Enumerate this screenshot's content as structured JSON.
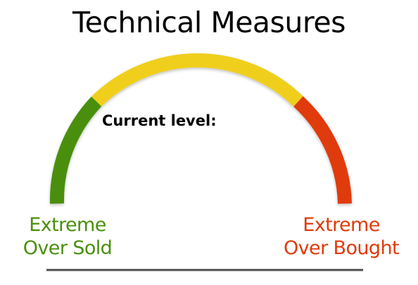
{
  "title": "Technical Measures",
  "current_level": {
    "label": "Current level:",
    "value": ""
  },
  "gauge": {
    "segments": [
      {
        "name": "oversold",
        "color": "#4a8f0c"
      },
      {
        "name": "neutral",
        "color": "#f0cf1a"
      },
      {
        "name": "overbought",
        "color": "#e03a0a"
      }
    ]
  },
  "labels": {
    "left": {
      "line1": "Extreme",
      "line2": "Over Sold",
      "color": "#4a8f0c"
    },
    "right": {
      "line1": "Extreme",
      "line2": "Over Bought",
      "color": "#e03a0a"
    }
  }
}
